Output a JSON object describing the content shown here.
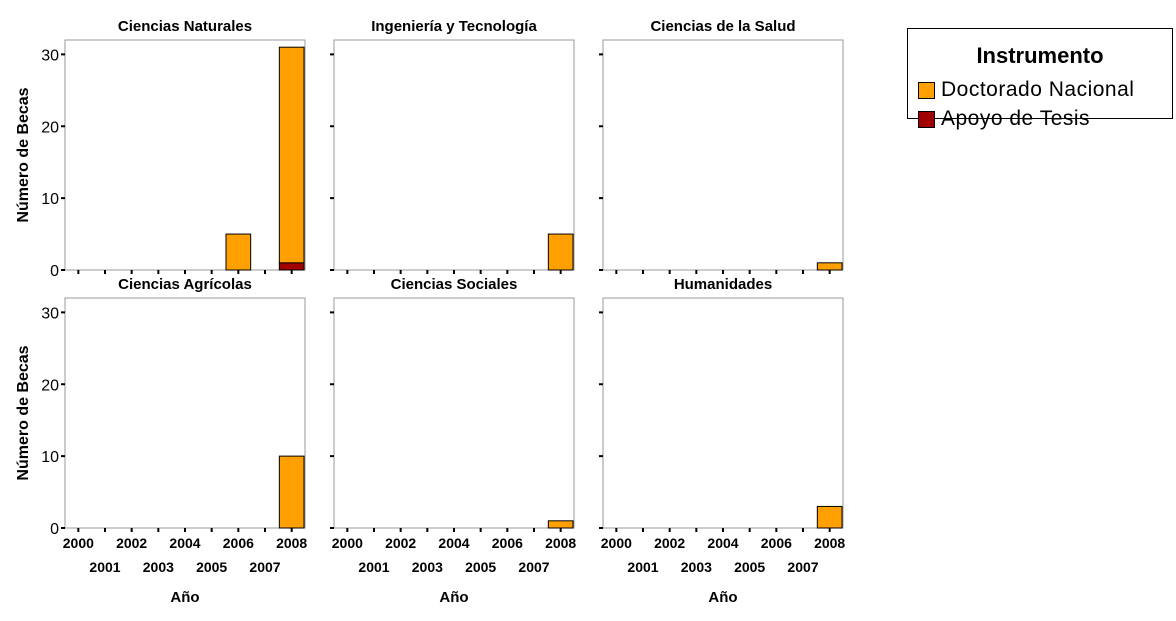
{
  "chart_data": {
    "type": "bar",
    "stacked": true,
    "layout": "facet-grid-2x3",
    "categories": [
      "2000",
      "2001",
      "2002",
      "2003",
      "2004",
      "2005",
      "2006",
      "2007",
      "2008"
    ],
    "ylim": [
      0,
      32
    ],
    "yticks": [
      0,
      10,
      20,
      30
    ],
    "ylabel": "Número de Becas",
    "xlabel": "Año",
    "grid": false,
    "legend": {
      "title": "Instrumento",
      "position": "right",
      "entries": [
        {
          "name": "Doctorado Nacional",
          "color": "#FFA000"
        },
        {
          "name": "Apoyo de Tesis",
          "color": "#A00000"
        }
      ]
    },
    "panels": [
      {
        "title": "Ciencias Naturales",
        "series": [
          {
            "name": "Doctorado Nacional",
            "values": [
              0,
              0,
              0,
              0,
              0,
              0,
              5,
              0,
              30
            ]
          },
          {
            "name": "Apoyo de Tesis",
            "values": [
              0,
              0,
              0,
              0,
              0,
              0,
              0,
              0,
              1
            ]
          }
        ]
      },
      {
        "title": "Ingeniería y Tecnología",
        "series": [
          {
            "name": "Doctorado Nacional",
            "values": [
              0,
              0,
              0,
              0,
              0,
              0,
              0,
              0,
              5
            ]
          },
          {
            "name": "Apoyo de Tesis",
            "values": [
              0,
              0,
              0,
              0,
              0,
              0,
              0,
              0,
              0
            ]
          }
        ]
      },
      {
        "title": "Ciencias de la Salud",
        "series": [
          {
            "name": "Doctorado Nacional",
            "values": [
              0,
              0,
              0,
              0,
              0,
              0,
              0,
              0,
              1
            ]
          },
          {
            "name": "Apoyo de Tesis",
            "values": [
              0,
              0,
              0,
              0,
              0,
              0,
              0,
              0,
              0
            ]
          }
        ]
      },
      {
        "title": "Ciencias Agrícolas",
        "series": [
          {
            "name": "Doctorado Nacional",
            "values": [
              0,
              0,
              0,
              0,
              0,
              0,
              0,
              0,
              10
            ]
          },
          {
            "name": "Apoyo de Tesis",
            "values": [
              0,
              0,
              0,
              0,
              0,
              0,
              0,
              0,
              0
            ]
          }
        ]
      },
      {
        "title": "Ciencias Sociales",
        "series": [
          {
            "name": "Doctorado Nacional",
            "values": [
              0,
              0,
              0,
              0,
              0,
              0,
              0,
              0,
              1
            ]
          },
          {
            "name": "Apoyo de Tesis",
            "values": [
              0,
              0,
              0,
              0,
              0,
              0,
              0,
              0,
              0
            ]
          }
        ]
      },
      {
        "title": "Humanidades",
        "series": [
          {
            "name": "Doctorado Nacional",
            "values": [
              0,
              0,
              0,
              0,
              0,
              0,
              0,
              0,
              3
            ]
          },
          {
            "name": "Apoyo de Tesis",
            "values": [
              0,
              0,
              0,
              0,
              0,
              0,
              0,
              0,
              0
            ]
          }
        ]
      }
    ]
  }
}
